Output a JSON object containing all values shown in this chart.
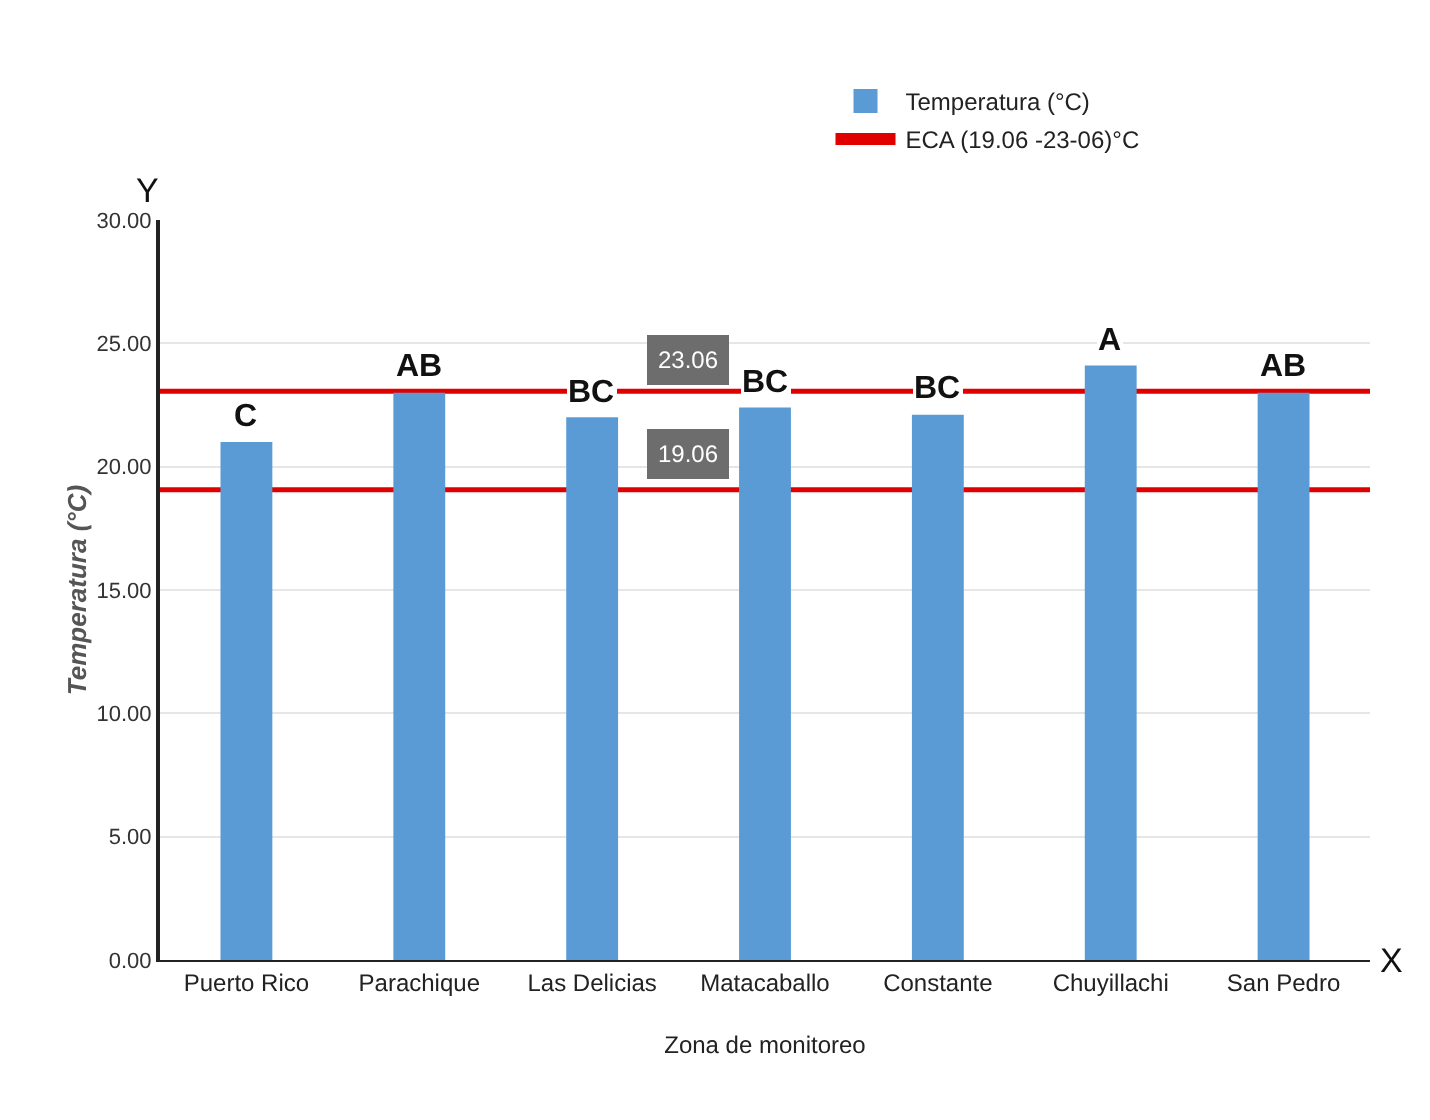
{
  "chart_data": {
    "type": "bar",
    "xlabel": "Zona de monitoreo",
    "ylabel": "Temperatura (°C)",
    "categories": [
      "Puerto Rico",
      "Parachique",
      "Las Delicias",
      "Matacaballo",
      "Constante",
      "Chuyillachi",
      "San Pedro"
    ],
    "series": [
      {
        "name": "Temperatura (°C)",
        "color": "#5b9bd5",
        "values": [
          21.0,
          23.0,
          22.0,
          22.4,
          22.1,
          24.1,
          23.0
        ],
        "value_labels": [
          "C",
          "AB",
          "BC",
          "BC",
          "BC",
          "A",
          "AB"
        ]
      }
    ],
    "ylim": [
      0,
      30
    ],
    "yticks": [
      {
        "value": 0,
        "label": "0.00"
      },
      {
        "value": 5,
        "label": "5.00"
      },
      {
        "value": 10,
        "label": "10.00"
      },
      {
        "value": 15,
        "label": "15.00"
      },
      {
        "value": 20,
        "label": "20.00"
      },
      {
        "value": 25,
        "label": "25.00"
      },
      {
        "value": 30,
        "label": "30.00"
      }
    ],
    "ref_lines": [
      {
        "axis": "y",
        "value": 23.06,
        "label": "23.06",
        "color": "#e00000"
      },
      {
        "axis": "y",
        "value": 19.06,
        "label": "19.06",
        "color": "#e00000"
      }
    ],
    "annotations": [
      "ECA (19.06 -23-06)°C",
      "Y",
      "X"
    ],
    "grid": "y",
    "legend": "top"
  }
}
